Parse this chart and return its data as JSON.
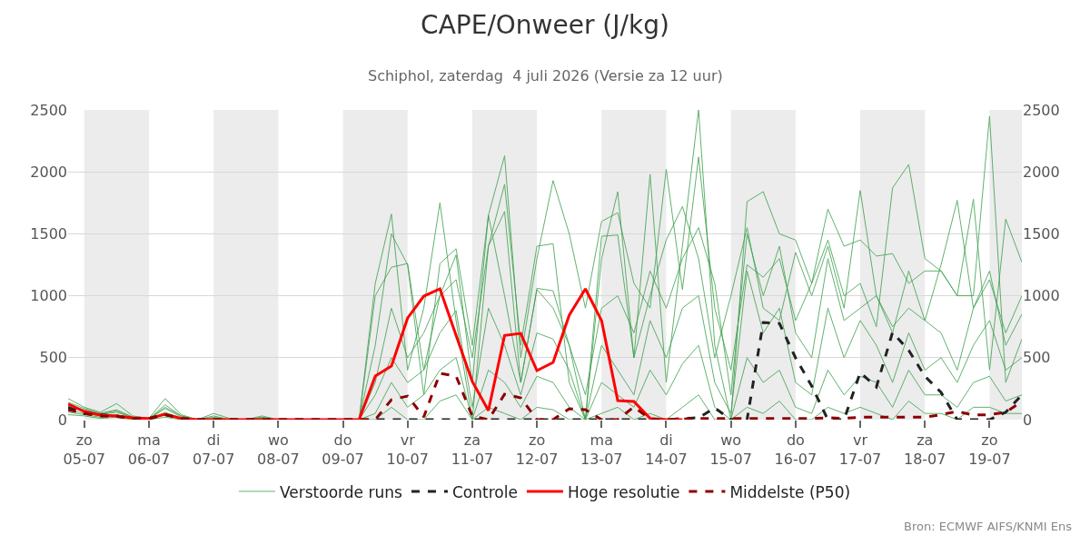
{
  "chart_data": {
    "type": "line",
    "title": "CAPE/Onweer (J/kg)",
    "subtitle": "Schiphol, zaterdag  4 juli 2026 (Versie za 12 uur)",
    "annotations": [
      "Bron: ECMWF AIFS/KNMI Ens"
    ],
    "x": [
      "2026-07-04T18:00",
      "2026-07-05T00:00",
      "2026-07-05T06:00",
      "2026-07-05T12:00",
      "2026-07-05T18:00",
      "2026-07-06T00:00",
      "2026-07-06T06:00",
      "2026-07-06T12:00",
      "2026-07-06T18:00",
      "2026-07-07T00:00",
      "2026-07-07T06:00",
      "2026-07-07T12:00",
      "2026-07-07T18:00",
      "2026-07-08T00:00",
      "2026-07-08T06:00",
      "2026-07-08T12:00",
      "2026-07-08T18:00",
      "2026-07-09T00:00",
      "2026-07-09T06:00",
      "2026-07-09T12:00",
      "2026-07-09T18:00",
      "2026-07-10T00:00",
      "2026-07-10T06:00",
      "2026-07-10T12:00",
      "2026-07-10T18:00",
      "2026-07-11T00:00",
      "2026-07-11T06:00",
      "2026-07-11T12:00",
      "2026-07-11T18:00",
      "2026-07-12T00:00",
      "2026-07-12T06:00",
      "2026-07-12T12:00",
      "2026-07-12T18:00",
      "2026-07-13T00:00",
      "2026-07-13T06:00",
      "2026-07-13T12:00",
      "2026-07-13T18:00",
      "2026-07-14T00:00",
      "2026-07-14T06:00",
      "2026-07-14T12:00",
      "2026-07-14T18:00",
      "2026-07-15T00:00",
      "2026-07-15T06:00",
      "2026-07-15T12:00",
      "2026-07-15T18:00",
      "2026-07-16T00:00",
      "2026-07-16T06:00",
      "2026-07-16T12:00",
      "2026-07-16T18:00",
      "2026-07-17T00:00",
      "2026-07-17T06:00",
      "2026-07-17T12:00",
      "2026-07-17T18:00",
      "2026-07-18T00:00",
      "2026-07-18T06:00",
      "2026-07-18T12:00",
      "2026-07-18T18:00",
      "2026-07-19T00:00",
      "2026-07-19T06:00",
      "2026-07-19T12:00"
    ],
    "series": [
      {
        "name": "Verstoorde runs",
        "color": "#3a9e4a",
        "values": [
          170,
          100,
          60,
          130,
          30,
          10,
          170,
          40,
          0,
          50,
          10,
          0,
          30,
          0,
          0,
          0,
          0,
          0,
          0,
          1100,
          1660,
          400,
          900,
          1750,
          800,
          0,
          1400,
          1900,
          600,
          1400,
          1420,
          300,
          0,
          1480,
          1490,
          500,
          1980,
          300,
          1400,
          2500,
          600,
          0,
          1760,
          1840,
          1500,
          1450,
          1100,
          1700,
          1400,
          1450,
          1320,
          1340,
          1100,
          1200,
          1200,
          1000,
          1000,
          2450,
          300,
          650
        ]
      },
      {
        "color": "#3a9e4a",
        "values": [
          140,
          90,
          50,
          80,
          20,
          5,
          120,
          30,
          0,
          20,
          0,
          0,
          20,
          0,
          0,
          0,
          0,
          0,
          0,
          600,
          1500,
          1250,
          200,
          1260,
          1380,
          600,
          1650,
          2130,
          500,
          1300,
          1930,
          1500,
          900,
          1600,
          1670,
          1100,
          900,
          2020,
          1050,
          2120,
          900,
          400,
          1250,
          1150,
          1300,
          800,
          1100,
          1450,
          1000,
          1100,
          750,
          1870,
          2060,
          1300,
          1200,
          1000,
          1780,
          400,
          1620,
          1270
        ]
      },
      {
        "color": "#3a9e4a",
        "values": [
          100,
          70,
          40,
          60,
          15,
          5,
          90,
          20,
          0,
          10,
          0,
          0,
          10,
          0,
          0,
          0,
          0,
          0,
          0,
          300,
          900,
          500,
          700,
          1000,
          1330,
          300,
          1650,
          1000,
          300,
          1050,
          900,
          600,
          200,
          900,
          1000,
          700,
          1200,
          900,
          1300,
          1550,
          1100,
          200,
          1500,
          1000,
          1400,
          700,
          500,
          1300,
          800,
          900,
          1000,
          700,
          1200,
          800,
          700,
          400,
          900,
          1200,
          600,
          850
        ]
      },
      {
        "color": "#3a9e4a",
        "values": [
          80,
          50,
          30,
          40,
          10,
          0,
          60,
          10,
          0,
          0,
          0,
          0,
          0,
          0,
          0,
          0,
          0,
          0,
          0,
          200,
          500,
          300,
          400,
          700,
          880,
          100,
          900,
          600,
          200,
          700,
          650,
          400,
          0,
          600,
          400,
          200,
          800,
          500,
          900,
          1000,
          300,
          50,
          1200,
          700,
          900,
          300,
          200,
          900,
          500,
          800,
          600,
          300,
          700,
          400,
          500,
          300,
          600,
          800,
          400,
          500
        ]
      },
      {
        "color": "#3a9e4a",
        "values": [
          60,
          40,
          20,
          30,
          5,
          0,
          40,
          5,
          0,
          0,
          0,
          0,
          0,
          0,
          0,
          0,
          0,
          0,
          0,
          50,
          300,
          100,
          200,
          400,
          500,
          0,
          400,
          300,
          100,
          350,
          300,
          100,
          0,
          300,
          200,
          100,
          400,
          200,
          450,
          600,
          100,
          0,
          500,
          300,
          400,
          100,
          50,
          400,
          200,
          350,
          300,
          100,
          400,
          200,
          200,
          100,
          300,
          350,
          150,
          200
        ]
      },
      {
        "color": "#3a9e4a",
        "values": [
          40,
          30,
          10,
          20,
          0,
          0,
          20,
          0,
          0,
          0,
          0,
          0,
          0,
          0,
          0,
          0,
          0,
          0,
          0,
          0,
          100,
          0,
          0,
          150,
          200,
          0,
          100,
          50,
          0,
          100,
          80,
          0,
          0,
          50,
          100,
          0,
          50,
          0,
          100,
          200,
          0,
          0,
          100,
          50,
          150,
          0,
          0,
          100,
          50,
          100,
          50,
          0,
          150,
          50,
          50,
          0,
          100,
          100,
          50,
          50
        ]
      },
      {
        "color": "#3a9e4a",
        "values": [
          120,
          80,
          50,
          70,
          20,
          10,
          100,
          30,
          0,
          30,
          0,
          0,
          15,
          0,
          0,
          0,
          0,
          0,
          0,
          1000,
          1230,
          1260,
          400,
          1000,
          1130,
          500,
          1400,
          1680,
          300,
          1060,
          1040,
          600,
          0,
          1300,
          1840,
          500,
          1000,
          1450,
          1720,
          1300,
          500,
          1000,
          1550,
          900,
          800,
          1350,
          1000,
          1400,
          900,
          1850,
          1000,
          750,
          900,
          800,
          1250,
          1770,
          900,
          1130,
          700,
          1000
        ]
      },
      {
        "name": "Controle",
        "color": "#222222",
        "line_style": "dashed",
        "values": [
          100,
          50,
          40,
          30,
          10,
          10,
          40,
          10,
          0,
          0,
          0,
          0,
          0,
          0,
          0,
          0,
          0,
          0,
          0,
          0,
          0,
          0,
          0,
          0,
          0,
          0,
          0,
          0,
          0,
          0,
          0,
          0,
          0,
          0,
          0,
          0,
          0,
          0,
          10,
          15,
          95,
          0,
          0,
          784,
          777,
          499,
          271,
          0,
          0,
          381,
          264,
          704,
          560,
          350,
          220,
          0,
          0,
          0,
          60,
          200
        ]
      },
      {
        "name": "Hoge resolutie",
        "color": "#ff0000",
        "values": [
          125,
          66,
          37,
          30,
          15,
          10,
          44,
          10,
          0,
          0,
          0,
          0,
          0,
          0,
          0,
          0,
          0,
          0,
          0,
          352,
          432,
          820,
          997,
          1056,
          680,
          308,
          73,
          680,
          696,
          396,
          462,
          843,
          1056,
          799,
          154,
          147,
          10,
          0,
          0,
          null,
          null,
          null,
          null,
          null,
          null,
          null,
          null,
          null,
          null,
          null,
          null,
          null,
          null,
          null,
          null,
          null,
          null,
          null,
          null,
          null
        ]
      },
      {
        "name": "Middelste (P50)",
        "color": "#8b0000",
        "line_style": "dashed",
        "values": [
          80,
          50,
          30,
          25,
          10,
          10,
          40,
          10,
          0,
          0,
          0,
          0,
          0,
          0,
          0,
          0,
          0,
          0,
          0,
          0,
          161,
          190,
          22,
          374,
          352,
          29,
          0,
          205,
          176,
          0,
          0,
          88,
          80,
          0,
          0,
          103,
          5,
          0,
          5,
          10,
          10,
          10,
          10,
          10,
          10,
          10,
          10,
          15,
          10,
          20,
          20,
          20,
          20,
          20,
          40,
          66,
          37,
          40,
          59,
          147
        ]
      }
    ],
    "xlim": [
      "2026-07-04T18:00",
      "2026-07-19T12:00"
    ],
    "xticks": [
      {
        "value": "2026-07-05",
        "label": "zo\n05-07"
      },
      {
        "value": "2026-07-06",
        "label": "ma\n06-07"
      },
      {
        "value": "2026-07-07",
        "label": "di\n07-07"
      },
      {
        "value": "2026-07-08",
        "label": "wo\n08-07"
      },
      {
        "value": "2026-07-09",
        "label": "do\n09-07"
      },
      {
        "value": "2026-07-10",
        "label": "vr\n10-07"
      },
      {
        "value": "2026-07-11",
        "label": "za\n11-07"
      },
      {
        "value": "2026-07-12",
        "label": "zo\n12-07"
      },
      {
        "value": "2026-07-13",
        "label": "ma\n13-07"
      },
      {
        "value": "2026-07-14",
        "label": "di\n14-07"
      },
      {
        "value": "2026-07-15",
        "label": "wo\n15-07"
      },
      {
        "value": "2026-07-16",
        "label": "do\n16-07"
      },
      {
        "value": "2026-07-17",
        "label": "vr\n17-07"
      },
      {
        "value": "2026-07-18",
        "label": "za\n18-07"
      },
      {
        "value": "2026-07-19",
        "label": "zo\n19-07"
      }
    ],
    "ylim": [
      0,
      2500
    ],
    "yticks": [
      0,
      500,
      1000,
      1500,
      2000,
      2500
    ],
    "y2lim": [
      0,
      2500
    ],
    "y2ticks": [
      0,
      500,
      1000,
      1500,
      2000,
      2500
    ],
    "bands": [
      {
        "axis": "x",
        "from": "2026-07-05",
        "to": "2026-07-06",
        "color": "#ececec"
      },
      {
        "axis": "x",
        "from": "2026-07-07",
        "to": "2026-07-08",
        "color": "#ececec"
      },
      {
        "axis": "x",
        "from": "2026-07-09",
        "to": "2026-07-10",
        "color": "#ececec"
      },
      {
        "axis": "x",
        "from": "2026-07-11",
        "to": "2026-07-12",
        "color": "#ececec"
      },
      {
        "axis": "x",
        "from": "2026-07-13",
        "to": "2026-07-14",
        "color": "#ececec"
      },
      {
        "axis": "x",
        "from": "2026-07-15",
        "to": "2026-07-16",
        "color": "#ececec"
      },
      {
        "axis": "x",
        "from": "2026-07-17",
        "to": "2026-07-18",
        "color": "#ececec"
      },
      {
        "axis": "x",
        "from": "2026-07-19",
        "to": "2026-07-19T12:00",
        "color": "#ececec"
      }
    ],
    "grid": "y",
    "legend": "bottom",
    "marker": "none",
    "line_style": "solid"
  }
}
